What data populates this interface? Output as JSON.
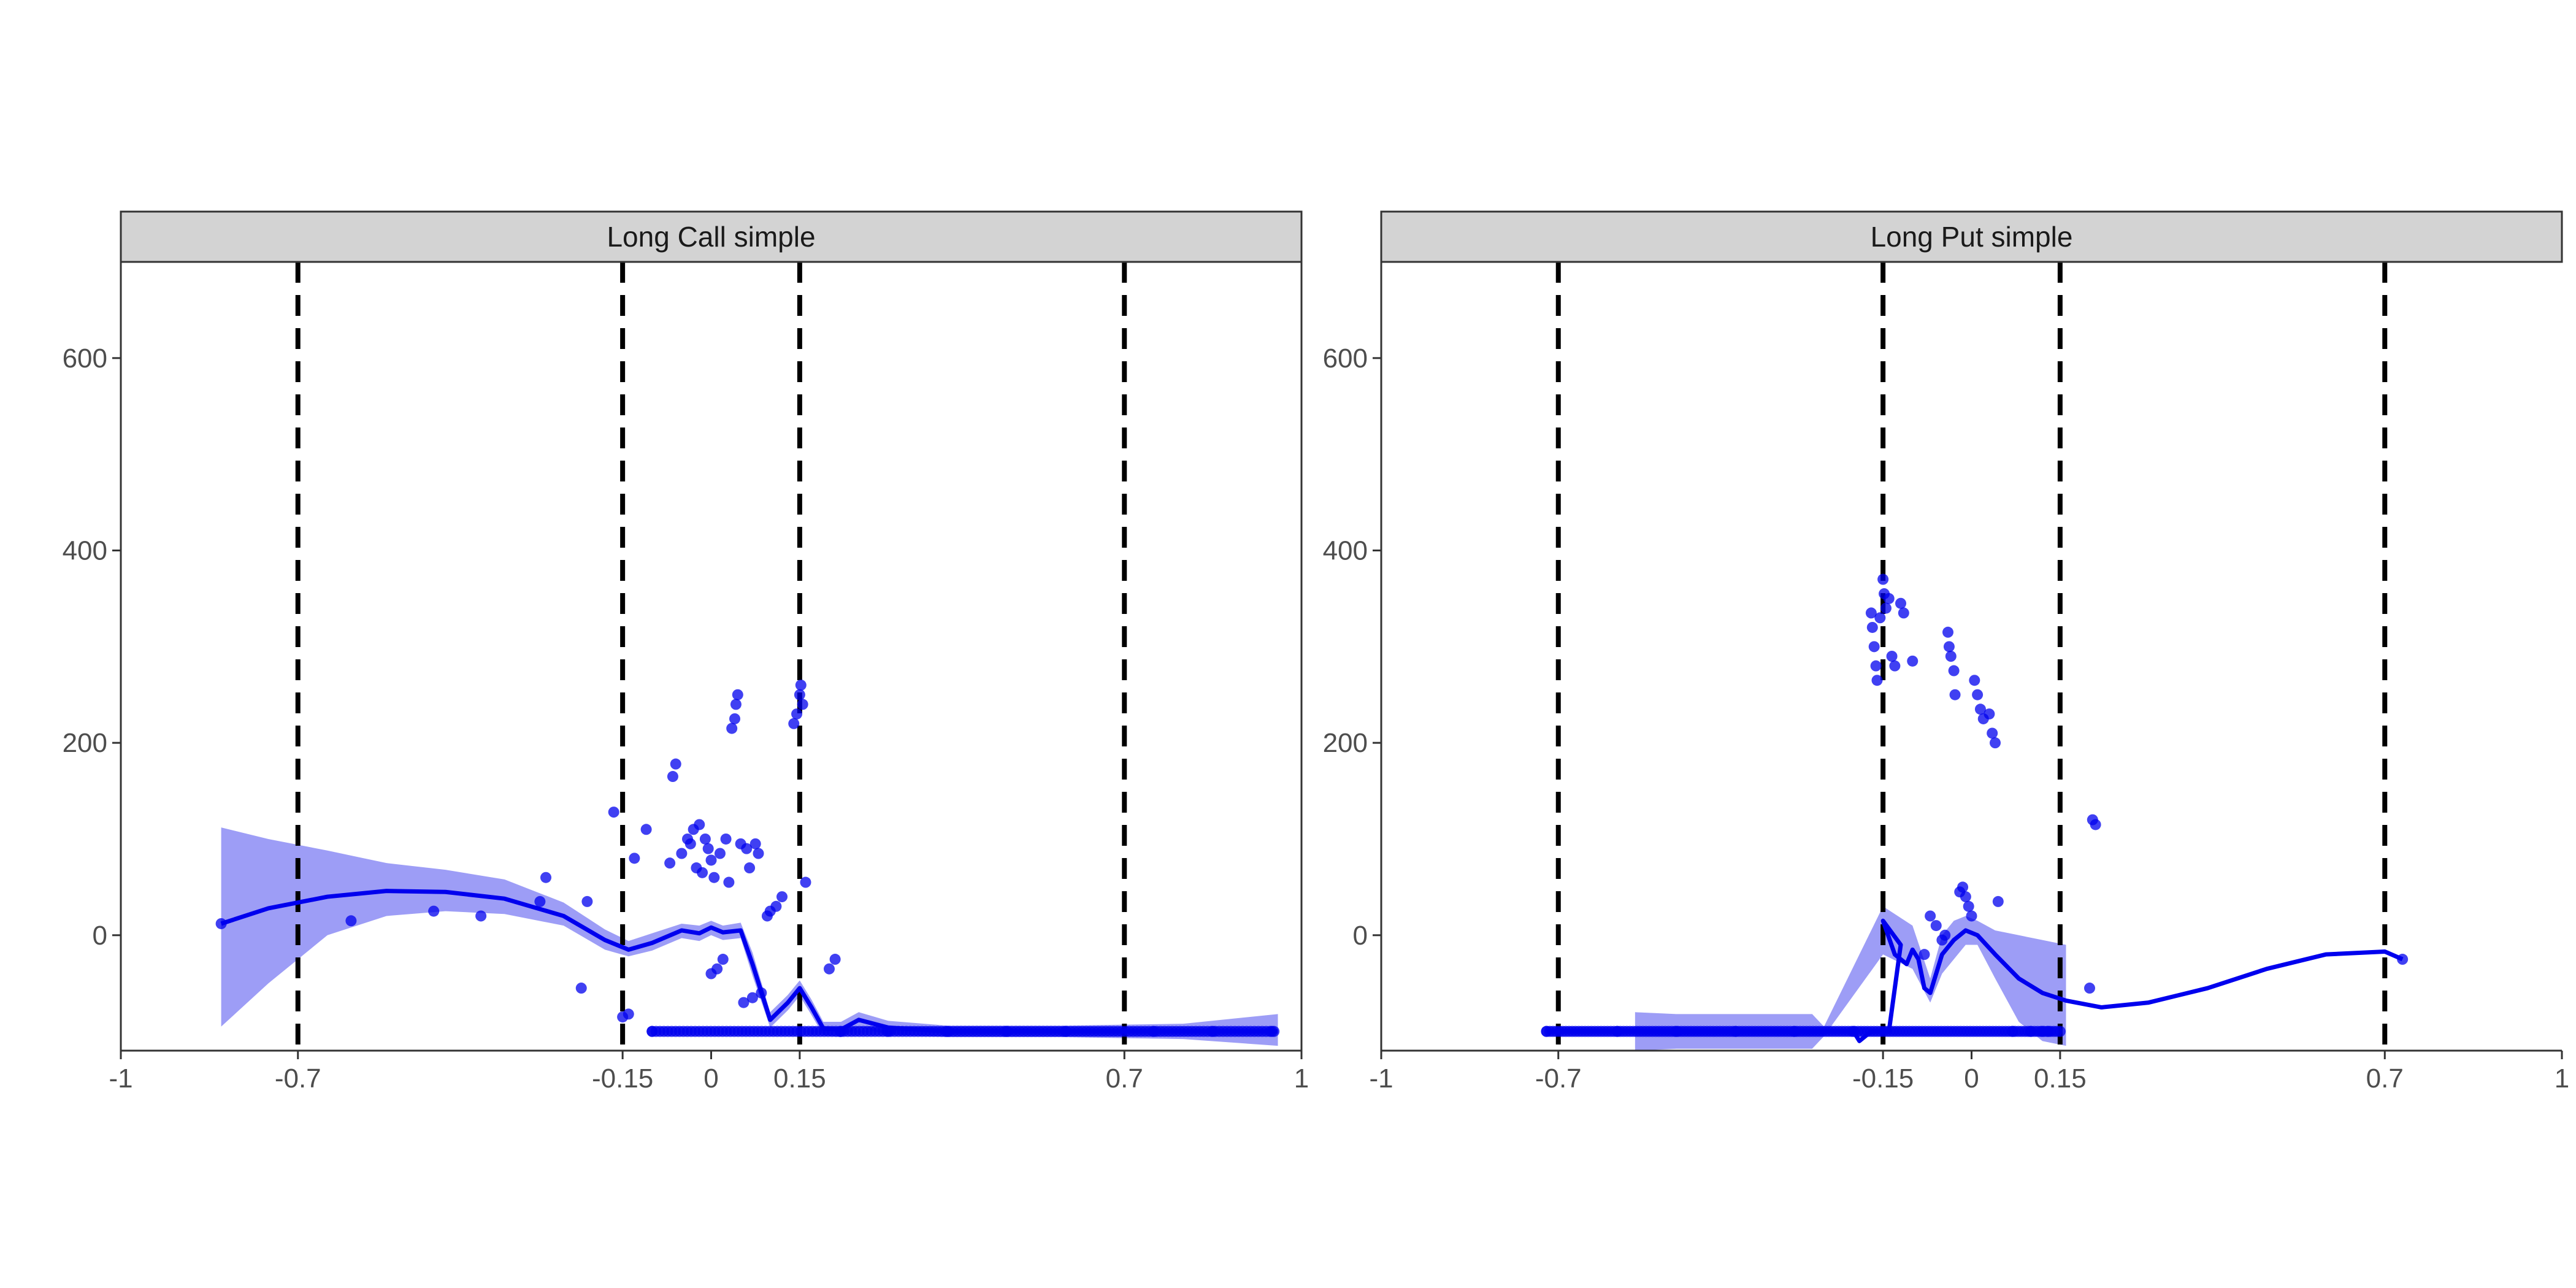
{
  "chart_data": [
    {
      "type": "scatter",
      "title": "Long Call simple",
      "xlim": [
        -1,
        1
      ],
      "ylim": [
        -120,
        700
      ],
      "x_ticks": [
        -1,
        -0.7,
        -0.15,
        0,
        0.15,
        0.7,
        1
      ],
      "x_tick_labels": [
        "-1",
        "-0.7",
        "-0.15",
        "0",
        "0.15",
        "0.7",
        "1"
      ],
      "y_ticks": [
        0,
        200,
        400,
        600
      ],
      "y_tick_labels": [
        "0",
        "200",
        "400",
        "600"
      ],
      "vlines": [
        -0.7,
        -0.15,
        0.15,
        0.7
      ],
      "grid": false,
      "points": [
        [
          -0.83,
          12
        ],
        [
          -0.61,
          15
        ],
        [
          -0.47,
          25
        ],
        [
          -0.39,
          20
        ],
        [
          -0.29,
          35
        ],
        [
          -0.28,
          60
        ],
        [
          -0.22,
          -55
        ],
        [
          -0.21,
          35
        ],
        [
          -0.165,
          128
        ],
        [
          -0.15,
          -85
        ],
        [
          -0.14,
          -82
        ],
        [
          -0.13,
          80
        ],
        [
          -0.11,
          110
        ],
        [
          -0.1,
          -100
        ],
        [
          -0.07,
          75
        ],
        [
          -0.065,
          165
        ],
        [
          -0.06,
          178
        ],
        [
          -0.05,
          85
        ],
        [
          -0.04,
          100
        ],
        [
          -0.035,
          95
        ],
        [
          -0.03,
          110
        ],
        [
          -0.025,
          70
        ],
        [
          -0.02,
          115
        ],
        [
          -0.015,
          65
        ],
        [
          -0.01,
          100
        ],
        [
          -0.005,
          90
        ],
        [
          0.0,
          78
        ],
        [
          0.0,
          -40
        ],
        [
          0.005,
          60
        ],
        [
          0.01,
          -35
        ],
        [
          0.015,
          85
        ],
        [
          0.02,
          -25
        ],
        [
          0.025,
          100
        ],
        [
          0.03,
          55
        ],
        [
          0.035,
          215
        ],
        [
          0.04,
          225
        ],
        [
          0.042,
          240
        ],
        [
          0.045,
          250
        ],
        [
          0.05,
          95
        ],
        [
          0.055,
          -70
        ],
        [
          0.06,
          90
        ],
        [
          0.065,
          70
        ],
        [
          0.07,
          -65
        ],
        [
          0.075,
          95
        ],
        [
          0.08,
          85
        ],
        [
          0.085,
          -60
        ],
        [
          0.095,
          20
        ],
        [
          0.1,
          25
        ],
        [
          0.11,
          30
        ],
        [
          0.12,
          40
        ],
        [
          0.14,
          220
        ],
        [
          0.145,
          230
        ],
        [
          0.15,
          250
        ],
        [
          0.152,
          260
        ],
        [
          0.155,
          240
        ],
        [
          0.16,
          55
        ],
        [
          0.2,
          -35
        ],
        [
          0.21,
          -25
        ],
        [
          0.22,
          -100
        ],
        [
          0.3,
          -100
        ],
        [
          0.4,
          -100
        ],
        [
          0.5,
          -100
        ],
        [
          0.6,
          -100
        ],
        [
          0.75,
          -100
        ],
        [
          0.85,
          -100
        ],
        [
          0.95,
          -100
        ]
      ],
      "trend": [
        [
          -0.83,
          12
        ],
        [
          -0.75,
          28
        ],
        [
          -0.65,
          40
        ],
        [
          -0.55,
          46
        ],
        [
          -0.45,
          45
        ],
        [
          -0.35,
          38
        ],
        [
          -0.25,
          20
        ],
        [
          -0.18,
          -5
        ],
        [
          -0.14,
          -15
        ],
        [
          -0.1,
          -8
        ],
        [
          -0.05,
          5
        ],
        [
          -0.02,
          2
        ],
        [
          0.0,
          8
        ],
        [
          0.02,
          3
        ],
        [
          0.05,
          5
        ],
        [
          0.07,
          -30
        ],
        [
          0.1,
          -88
        ],
        [
          0.13,
          -70
        ],
        [
          0.15,
          -55
        ],
        [
          0.17,
          -75
        ],
        [
          0.19,
          -97
        ],
        [
          0.22,
          -98
        ],
        [
          0.25,
          -88
        ],
        [
          0.3,
          -96
        ],
        [
          0.4,
          -100
        ],
        [
          0.5,
          -100
        ],
        [
          0.6,
          -100
        ],
        [
          0.7,
          -100
        ],
        [
          0.8,
          -100
        ],
        [
          0.96,
          -100
        ]
      ],
      "band": [
        [
          -0.83,
          -95,
          112
        ],
        [
          -0.75,
          -50,
          100
        ],
        [
          -0.65,
          0,
          88
        ],
        [
          -0.55,
          20,
          75
        ],
        [
          -0.45,
          25,
          68
        ],
        [
          -0.35,
          22,
          58
        ],
        [
          -0.25,
          10,
          34
        ],
        [
          -0.18,
          -15,
          6
        ],
        [
          -0.14,
          -22,
          -6
        ],
        [
          -0.1,
          -16,
          2
        ],
        [
          -0.05,
          -3,
          12
        ],
        [
          -0.02,
          -6,
          10
        ],
        [
          0.0,
          0,
          15
        ],
        [
          0.02,
          -5,
          10
        ],
        [
          0.05,
          -3,
          13
        ],
        [
          0.07,
          -42,
          -18
        ],
        [
          0.1,
          -96,
          -80
        ],
        [
          0.13,
          -78,
          -62
        ],
        [
          0.15,
          -63,
          -47
        ],
        [
          0.17,
          -83,
          -67
        ],
        [
          0.19,
          -104,
          -90
        ],
        [
          0.22,
          -106,
          -90
        ],
        [
          0.25,
          -96,
          -80
        ],
        [
          0.3,
          -103,
          -89
        ],
        [
          0.4,
          -106,
          -94
        ],
        [
          0.5,
          -106,
          -94
        ],
        [
          0.6,
          -106,
          -94
        ],
        [
          0.7,
          -107,
          -93
        ],
        [
          0.8,
          -108,
          -92
        ],
        [
          0.96,
          -115,
          -82
        ]
      ]
    },
    {
      "type": "scatter",
      "title": "Long Put simple",
      "xlim": [
        -1,
        1
      ],
      "ylim": [
        -120,
        700
      ],
      "x_ticks": [
        -1,
        -0.7,
        -0.15,
        0,
        0.15,
        0.7,
        1
      ],
      "x_tick_labels": [
        "-1",
        "-0.7",
        "-0.15",
        "0",
        "0.15",
        "0.7",
        "1"
      ],
      "y_ticks": [
        0,
        200,
        400,
        600
      ],
      "y_tick_labels": [
        "0",
        "200",
        "400",
        "600"
      ],
      "vlines": [
        -0.7,
        -0.15,
        0.15,
        0.7
      ],
      "grid": false,
      "points": [
        [
          -0.72,
          -100
        ],
        [
          -0.6,
          -100
        ],
        [
          -0.5,
          -100
        ],
        [
          -0.4,
          -100
        ],
        [
          -0.3,
          -100
        ],
        [
          -0.2,
          -100
        ],
        [
          -0.17,
          335
        ],
        [
          -0.168,
          320
        ],
        [
          -0.165,
          300
        ],
        [
          -0.162,
          280
        ],
        [
          -0.16,
          265
        ],
        [
          -0.155,
          330
        ],
        [
          -0.15,
          370
        ],
        [
          -0.148,
          355
        ],
        [
          -0.145,
          340
        ],
        [
          -0.14,
          350
        ],
        [
          -0.135,
          290
        ],
        [
          -0.13,
          280
        ],
        [
          -0.12,
          345
        ],
        [
          -0.115,
          335
        ],
        [
          -0.1,
          285
        ],
        [
          -0.08,
          -20
        ],
        [
          -0.07,
          20
        ],
        [
          -0.06,
          10
        ],
        [
          -0.05,
          -5
        ],
        [
          -0.045,
          0
        ],
        [
          -0.04,
          315
        ],
        [
          -0.038,
          300
        ],
        [
          -0.035,
          290
        ],
        [
          -0.03,
          275
        ],
        [
          -0.028,
          250
        ],
        [
          -0.02,
          45
        ],
        [
          -0.015,
          50
        ],
        [
          -0.01,
          40
        ],
        [
          -0.005,
          30
        ],
        [
          0.0,
          20
        ],
        [
          0.005,
          265
        ],
        [
          0.01,
          250
        ],
        [
          0.015,
          235
        ],
        [
          0.02,
          225
        ],
        [
          0.03,
          230
        ],
        [
          0.035,
          210
        ],
        [
          0.04,
          200
        ],
        [
          0.045,
          35
        ],
        [
          0.07,
          -100
        ],
        [
          0.1,
          -100
        ],
        [
          0.12,
          -100
        ],
        [
          0.13,
          -100
        ],
        [
          0.15,
          -100
        ],
        [
          0.205,
          120
        ],
        [
          0.21,
          115
        ],
        [
          0.2,
          -55
        ],
        [
          0.73,
          -25
        ]
      ],
      "trend": [
        [
          -0.72,
          -100
        ],
        [
          -0.25,
          -100
        ],
        [
          -0.2,
          -100
        ],
        [
          -0.19,
          -110
        ],
        [
          -0.17,
          -100
        ],
        [
          -0.14,
          -100
        ],
        [
          -0.12,
          -10
        ],
        [
          -0.15,
          15
        ],
        [
          -0.13,
          -20
        ],
        [
          -0.11,
          -30
        ],
        [
          -0.1,
          -15
        ],
        [
          -0.09,
          -25
        ],
        [
          -0.08,
          -55
        ],
        [
          -0.07,
          -60
        ],
        [
          -0.05,
          -20
        ],
        [
          -0.03,
          -5
        ],
        [
          -0.01,
          5
        ],
        [
          0.01,
          0
        ],
        [
          0.04,
          -20
        ],
        [
          0.08,
          -45
        ],
        [
          0.12,
          -60
        ],
        [
          0.16,
          -68
        ],
        [
          0.22,
          -75
        ],
        [
          0.3,
          -70
        ],
        [
          0.4,
          -55
        ],
        [
          0.5,
          -35
        ],
        [
          0.6,
          -20
        ],
        [
          0.7,
          -17
        ],
        [
          0.73,
          -25
        ]
      ],
      "band": [
        [
          -0.57,
          -120,
          -80
        ],
        [
          -0.5,
          -118,
          -82
        ],
        [
          -0.4,
          -118,
          -82
        ],
        [
          -0.3,
          -118,
          -82
        ],
        [
          -0.27,
          -118,
          -82
        ],
        [
          -0.25,
          -105,
          -95
        ],
        [
          -0.15,
          -20,
          30
        ],
        [
          -0.1,
          -35,
          10
        ],
        [
          -0.07,
          -70,
          -45
        ],
        [
          -0.05,
          -40,
          0
        ],
        [
          -0.03,
          -25,
          15
        ],
        [
          -0.01,
          -10,
          20
        ],
        [
          0.01,
          -10,
          15
        ],
        [
          0.04,
          -45,
          5
        ],
        [
          0.08,
          -90,
          0
        ],
        [
          0.12,
          -110,
          -5
        ],
        [
          0.16,
          -115,
          -10
        ]
      ]
    }
  ]
}
